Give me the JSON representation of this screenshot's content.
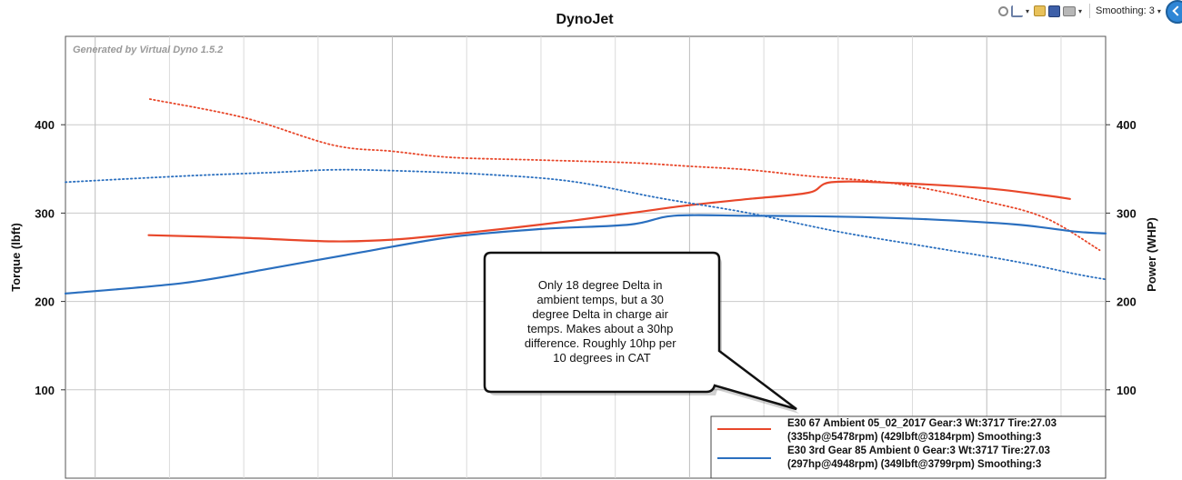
{
  "toolbar": {
    "smoothing_label": "Smoothing: 3",
    "icons": [
      "zoom-icon",
      "axes-icon",
      "open-icon",
      "save-icon",
      "print-icon"
    ]
  },
  "chart_data": {
    "type": "line",
    "title": "DynoJet",
    "watermark": "Generated by Virtual Dyno 1.5.2",
    "ylabel": "Torque (lbft)",
    "y2label": "Power (WHP)",
    "ylim": [
      0,
      500
    ],
    "y2lim": [
      0,
      500
    ],
    "yticks": [
      100,
      200,
      300,
      400
    ],
    "y2ticks": [
      100,
      200,
      300,
      400
    ],
    "xlim": [
      2900,
      6400
    ],
    "x_grid": [
      3000,
      4000,
      5000,
      6000
    ],
    "grid": true,
    "colors": {
      "run1": "#e8472a",
      "run2": "#2a6fbf"
    },
    "series": [
      {
        "name": "E30 67 Ambient 05_02_2017 Gear:3 Wt:3717 Tire:27.03 (335hp@5478rpm) (429lbft@3184rpm) Smoothing:3",
        "curves": [
          {
            "kind": "power",
            "style": "solid",
            "color": "#e8472a",
            "x": [
              3180,
              3500,
              3800,
              4000,
              4200,
              4500,
              4800,
              5000,
              5200,
              5400,
              5478,
              5700,
              6000,
              6200,
              6280
            ],
            "y": [
              275,
              272,
              268,
              270,
              276,
              287,
              300,
              309,
              316,
              323,
              335,
              334,
              328,
              320,
              316
            ]
          },
          {
            "kind": "torque",
            "style": "dotted",
            "color": "#e8472a",
            "x": [
              3184,
              3500,
              3800,
              4000,
              4200,
              4500,
              4800,
              5000,
              5200,
              5400,
              5700,
              6000,
              6200,
              6380
            ],
            "y": [
              429,
              408,
              377,
              370,
              363,
              360,
              357,
              353,
              349,
              342,
              333,
              313,
              294,
              258
            ]
          }
        ]
      },
      {
        "name": "E30 3rd Gear 85 Ambient 0 Gear:3 Wt:3717 Tire:27.03 (297hp@4948rpm) (349lbft@3799rpm) Smoothing:3",
        "curves": [
          {
            "kind": "power",
            "style": "solid",
            "color": "#2a6fbf",
            "x": [
              2900,
              3300,
              3600,
              3900,
              4200,
              4500,
              4800,
              4948,
              5200,
              5500,
              5800,
              6100,
              6300,
              6400
            ],
            "y": [
              209,
              221,
              238,
              256,
              273,
              282,
              287,
              297,
              297,
              296,
              293,
              287,
              279,
              277
            ]
          },
          {
            "kind": "torque",
            "style": "dotted",
            "color": "#2a6fbf",
            "x": [
              2900,
              3300,
              3600,
              3799,
              4000,
              4300,
              4600,
              4900,
              5200,
              5500,
              5800,
              6100,
              6300,
              6400
            ],
            "y": [
              335,
              342,
              346,
              349,
              348,
              344,
              336,
              317,
              300,
              279,
              262,
              245,
              231,
              225
            ]
          }
        ]
      }
    ],
    "legend": {
      "position": "bottom-right",
      "lines": [
        "E30 67 Ambient 05_02_2017 Gear:3 Wt:3717 Tire:27.03",
        "(335hp@5478rpm) (429lbft@3184rpm) Smoothing:3",
        "E30 3rd Gear 85 Ambient 0 Gear:3 Wt:3717 Tire:27.03",
        "(297hp@4948rpm) (349lbft@3799rpm) Smoothing:3"
      ]
    },
    "annotation": {
      "lines": [
        "Only 18 degree Delta in",
        "ambient temps, but a 30",
        "degree Delta in charge air",
        "temps. Makes about a 30hp",
        "difference. Roughly 10hp per",
        "10 degrees in CAT"
      ]
    }
  }
}
